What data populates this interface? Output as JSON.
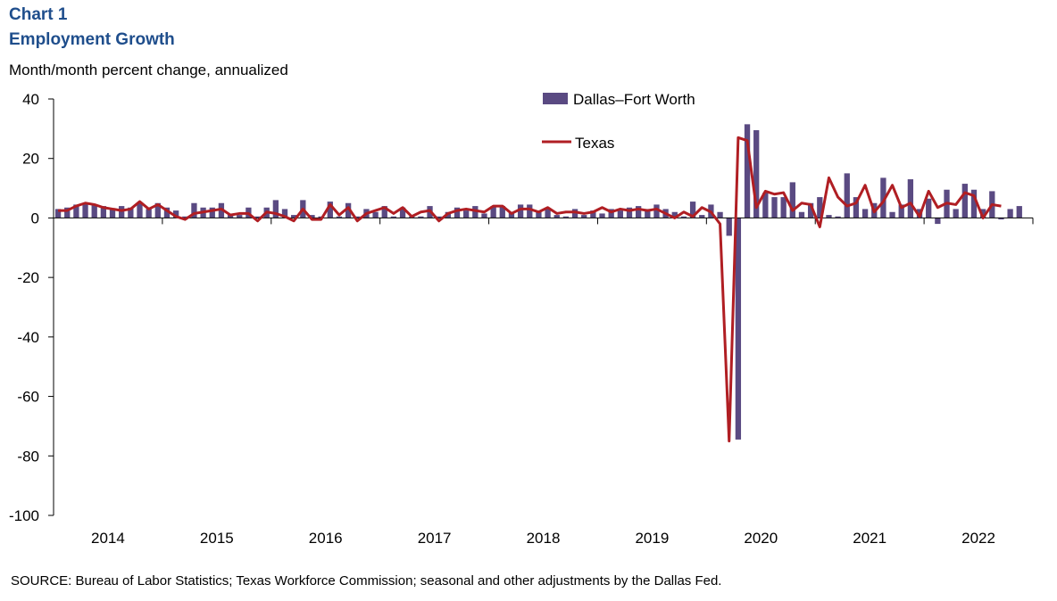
{
  "header": {
    "chart_label": "Chart 1",
    "title": "Employment Growth",
    "unit_label": "Month/month percent change, annualized"
  },
  "footer": {
    "source": "SOURCE: Bureau of Labor Statistics; Texas Workforce Commission; seasonal and other adjustments by the Dallas Fed."
  },
  "colors": {
    "bar": "#5a4a82",
    "line": "#b01e23",
    "title": "#1f4e8c"
  },
  "chart_data": {
    "type": "bar+line",
    "title": "Employment Growth",
    "ylabel": "Month/month percent change, annualized",
    "ylim": [
      -100,
      40
    ],
    "yticks": [
      "40",
      "20",
      "0",
      "-20",
      "-40",
      "-60",
      "-80",
      "-100"
    ],
    "ytick_values": [
      40,
      20,
      0,
      -20,
      -40,
      -60,
      -80,
      -100
    ],
    "xtick_labels": [
      "2014",
      "2015",
      "2016",
      "2017",
      "2018",
      "2019",
      "2020",
      "2021",
      "2022"
    ],
    "start": "2014-01",
    "end": "2022-06",
    "grid": false,
    "legend_position": "top-center",
    "series": [
      {
        "name": "Dallas–Fort Worth",
        "type": "bar",
        "values": [
          3,
          3.5,
          4.5,
          5,
          4.5,
          4,
          3,
          4,
          3.5,
          5,
          3,
          5,
          3.5,
          2.5,
          0.5,
          5,
          3.5,
          3.5,
          5,
          1,
          1,
          3.5,
          0.5,
          3.5,
          6,
          3,
          1,
          6,
          1,
          0.5,
          5.5,
          0.5,
          5,
          0.5,
          3,
          2,
          4,
          0.5,
          3.5,
          0.5,
          0.5,
          4,
          0.5,
          2,
          3.5,
          2.5,
          4,
          1.5,
          4,
          4,
          2,
          4.5,
          4.5,
          2.5,
          3,
          1,
          0.5,
          3,
          1,
          2.5,
          1.5,
          3,
          2.5,
          3.5,
          4,
          3,
          4.5,
          3,
          2,
          0.5,
          5.5,
          1,
          4.5,
          2,
          -6,
          -74.5,
          31.5,
          29.5,
          8.5,
          7,
          7,
          12,
          2,
          5,
          7,
          1,
          0.5,
          15,
          7,
          3,
          5,
          13.5,
          2,
          4.5,
          13,
          3,
          6.5,
          -2,
          9.5,
          3,
          11.5,
          9.5,
          3,
          9,
          -0.5,
          3,
          4
        ]
      },
      {
        "name": "Texas",
        "type": "line",
        "values": [
          2.5,
          2.5,
          4,
          5,
          4.5,
          3.5,
          3,
          2.5,
          3,
          5.5,
          3,
          4.5,
          2.5,
          0.5,
          -0.5,
          1.5,
          2,
          2.5,
          3,
          1,
          1.5,
          1.5,
          -1,
          2,
          1.5,
          0.5,
          -1,
          3,
          -0.5,
          -0.5,
          4.5,
          1,
          3.5,
          -1,
          1.5,
          2.5,
          3.5,
          1.5,
          3.5,
          0.5,
          2,
          2.5,
          -1,
          1.5,
          2.5,
          3,
          2.5,
          2,
          4,
          4,
          1.5,
          3,
          3,
          2,
          3.5,
          1.5,
          2,
          2,
          1.5,
          2,
          3.5,
          2,
          3,
          2.5,
          3,
          2.5,
          3,
          1.5,
          0,
          2,
          0.5,
          3.5,
          2,
          -2,
          -75,
          27,
          26,
          3.5,
          9,
          8,
          8.5,
          2.5,
          5,
          4.5,
          -3,
          13.5,
          7,
          4,
          5,
          11,
          2,
          5.5,
          11,
          3.5,
          5,
          0.5,
          9,
          3.5,
          5,
          4.5,
          8.5,
          7.5,
          0,
          4.5,
          4
        ]
      }
    ]
  }
}
